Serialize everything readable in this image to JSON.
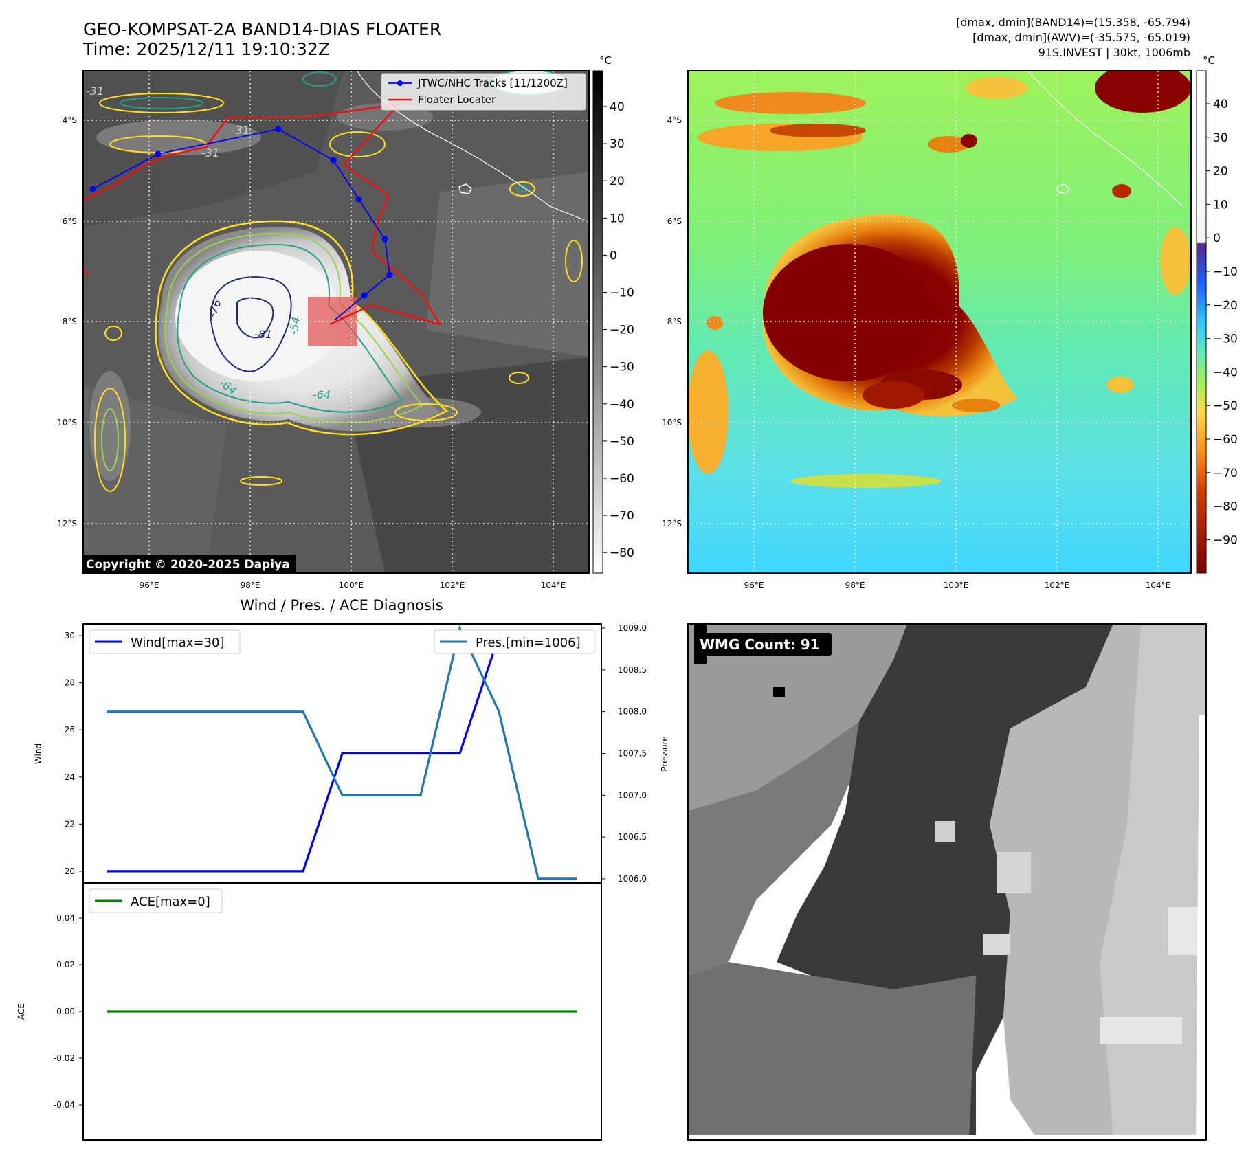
{
  "header": {
    "title": "GEO-KOMPSAT-2A BAND14-DIAS FLOATER",
    "time": "Time: 2025/12/11 19:10:32Z",
    "info_line1": "[dmax, dmin](BAND14)=(15.358, -65.794)",
    "info_line2": "[dmax, dmin](AWV)=(-35.575, -65.019)",
    "info_line3": "91S.INVEST | 30kt, 1006mb"
  },
  "ir_panel": {
    "copyright": "Copyright © 2020-2025 Dapiya",
    "unit": "°C",
    "lat_labels": [
      "4°S",
      "6°S",
      "8°S",
      "10°S",
      "12°S"
    ],
    "lon_labels": [
      "96°E",
      "98°E",
      "100°E",
      "102°E",
      "104°E"
    ],
    "colorbar_ticks": [
      "40",
      "30",
      "20",
      "10",
      "0",
      "−10",
      "−20",
      "−30",
      "−40",
      "−50",
      "−60",
      "−70",
      "−80"
    ],
    "legend": [
      "JTWC/NHC Tracks [11/1200Z]",
      "Floater Locater"
    ],
    "contour_labels": [
      "-76",
      "-81",
      "-64",
      "-64",
      "-31",
      "-31",
      "-31",
      "-54"
    ],
    "colors": {
      "track": "#0000ff",
      "locater": "#ff0000",
      "contour_warm": "#ffe01a",
      "contour_mid": "#9ad24a",
      "contour_cool": "#22a08a",
      "contour_cold": "#1f2a7a"
    }
  },
  "color_panel": {
    "unit": "°C",
    "lat_labels": [
      "4°S",
      "6°S",
      "8°S",
      "10°S",
      "12°S"
    ],
    "lon_labels": [
      "96°E",
      "98°E",
      "100°E",
      "102°E",
      "104°E"
    ],
    "colorbar_ticks": [
      "40",
      "30",
      "20",
      "10",
      "0",
      "−10",
      "−20",
      "−30",
      "−40",
      "−50",
      "−60",
      "−70",
      "−80",
      "−90"
    ]
  },
  "wmg_panel": {
    "label": "WMG Count: 91"
  },
  "diagnosis": {
    "title": "Wind / Pres. / ACE Diagnosis",
    "wind_ylabel": "Wind",
    "pres_ylabel": "Pressure",
    "ace_ylabel": "ACE",
    "wind_ticks": [
      "20",
      "22",
      "24",
      "26",
      "28",
      "30"
    ],
    "pres_ticks": [
      "1006.0",
      "1006.5",
      "1007.0",
      "1007.5",
      "1008.0",
      "1008.5",
      "1009.0"
    ],
    "ace_ticks": [
      "0.04",
      "0.02",
      "0.00",
      "-0.02",
      "-0.04"
    ],
    "legend_wind": "Wind[max=30]",
    "legend_pres": "Pres.[min=1006]",
    "legend_ace": "ACE[max=0]"
  },
  "chart_data": {
    "type": "line",
    "x": [
      1,
      2,
      3,
      4,
      5,
      6,
      7,
      8,
      9,
      10,
      11,
      12,
      13
    ],
    "series": [
      {
        "name": "Wind[max=30]",
        "axis": "wind",
        "color": "#0000ff",
        "values": [
          20,
          20,
          20,
          20,
          20,
          20,
          25,
          25,
          25,
          25,
          30,
          30,
          30
        ]
      },
      {
        "name": "Pres.[min=1006]",
        "axis": "pressure",
        "color": "#1f77b4",
        "values": [
          1008,
          1008,
          1008,
          1008,
          1008,
          1008,
          1007,
          1007,
          1007,
          1009,
          1008,
          1006,
          1006
        ]
      },
      {
        "name": "ACE[max=0]",
        "axis": "ace",
        "color": "#008000",
        "values": [
          0,
          0,
          0,
          0,
          0,
          0,
          0,
          0,
          0,
          0,
          0,
          0,
          0
        ]
      }
    ],
    "wind_ylim": [
      19.5,
      30.5
    ],
    "pressure_ylim": [
      1005.95,
      1009.05
    ],
    "ace_ylim": [
      -0.055,
      0.055
    ],
    "grid": false
  }
}
